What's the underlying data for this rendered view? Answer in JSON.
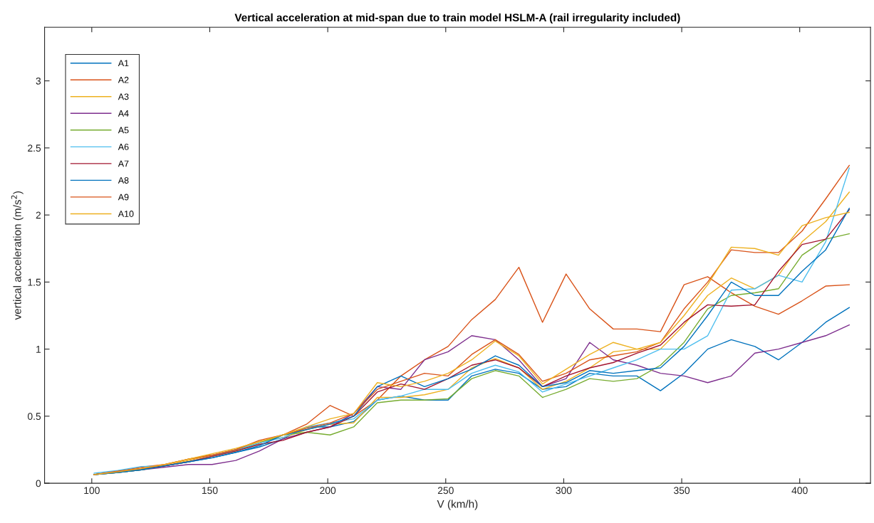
{
  "chart_data": {
    "type": "line",
    "title": "Vertical acceleration at mid-span due to train model HSLM-A (rail irregularity included)",
    "xlabel": "V (km/h)",
    "ylabel": "vertical acceleration (m/s$^{2}$)",
    "x": [
      101,
      111,
      121,
      131,
      141,
      151,
      161,
      171,
      181,
      191,
      201,
      211,
      221,
      231,
      241,
      251,
      261,
      271,
      281,
      291,
      301,
      311,
      321,
      331,
      341,
      351,
      361,
      371,
      381,
      391,
      401,
      411,
      421
    ],
    "xlim": [
      80,
      430
    ],
    "xticks": [
      100,
      150,
      200,
      250,
      300,
      350,
      400
    ],
    "ylim": [
      0,
      3.4
    ],
    "yticks": [
      0,
      0.5,
      1,
      1.5,
      2,
      2.5,
      3
    ],
    "grid": false,
    "legend": "top left",
    "line_style": "solid",
    "marker": "none",
    "series": [
      {
        "name": "A1",
        "color": "#0072bd",
        "values": [
          0.065,
          0.08,
          0.1,
          0.13,
          0.16,
          0.19,
          0.23,
          0.27,
          0.33,
          0.42,
          0.42,
          0.46,
          0.62,
          0.65,
          0.62,
          0.62,
          0.8,
          0.85,
          0.82,
          0.7,
          0.72,
          0.82,
          0.8,
          0.8,
          0.69,
          0.82,
          1.0,
          1.07,
          1.02,
          0.92,
          1.05,
          1.2,
          1.31
        ]
      },
      {
        "name": "A2",
        "color": "#d95319",
        "values": [
          0.065,
          0.09,
          0.12,
          0.14,
          0.18,
          0.21,
          0.25,
          0.3,
          0.36,
          0.44,
          0.58,
          0.5,
          0.62,
          0.8,
          0.92,
          1.02,
          1.22,
          1.37,
          1.61,
          1.2,
          1.56,
          1.3,
          1.15,
          1.15,
          1.13,
          1.48,
          1.54,
          1.42,
          1.32,
          1.26,
          1.36,
          1.47,
          1.48
        ]
      },
      {
        "name": "A3",
        "color": "#edb120",
        "values": [
          0.065,
          0.085,
          0.11,
          0.13,
          0.17,
          0.21,
          0.25,
          0.31,
          0.34,
          0.4,
          0.44,
          0.45,
          0.64,
          0.64,
          0.66,
          0.7,
          0.86,
          0.93,
          0.86,
          0.7,
          0.76,
          0.86,
          0.98,
          1.0,
          1.0,
          1.18,
          1.4,
          1.53,
          1.45,
          1.55,
          1.8,
          1.95,
          2.17
        ]
      },
      {
        "name": "A4",
        "color": "#7e2f8e",
        "values": [
          0.065,
          0.08,
          0.1,
          0.12,
          0.14,
          0.14,
          0.17,
          0.24,
          0.33,
          0.38,
          0.42,
          0.52,
          0.72,
          0.7,
          0.92,
          0.98,
          1.1,
          1.07,
          0.92,
          0.72,
          0.78,
          1.05,
          0.92,
          0.88,
          0.82,
          0.8,
          0.75,
          0.8,
          0.97,
          1.0,
          1.05,
          1.1,
          1.18
        ]
      },
      {
        "name": "A5",
        "color": "#77ac30",
        "values": [
          0.065,
          0.08,
          0.1,
          0.13,
          0.16,
          0.2,
          0.24,
          0.3,
          0.36,
          0.38,
          0.36,
          0.42,
          0.6,
          0.62,
          0.62,
          0.63,
          0.78,
          0.84,
          0.8,
          0.64,
          0.7,
          0.78,
          0.76,
          0.78,
          0.88,
          1.05,
          1.3,
          1.4,
          1.42,
          1.45,
          1.7,
          1.82,
          1.86
        ]
      },
      {
        "name": "A6",
        "color": "#4dbeee",
        "values": [
          0.075,
          0.095,
          0.125,
          0.13,
          0.16,
          0.2,
          0.25,
          0.3,
          0.34,
          0.42,
          0.45,
          0.48,
          0.62,
          0.65,
          0.7,
          0.7,
          0.82,
          0.88,
          0.83,
          0.68,
          0.74,
          0.8,
          0.86,
          0.92,
          1.0,
          1.0,
          1.1,
          1.44,
          1.45,
          1.55,
          1.5,
          1.8,
          2.35
        ]
      },
      {
        "name": "A7",
        "color": "#a2142f",
        "values": [
          0.065,
          0.085,
          0.11,
          0.13,
          0.16,
          0.2,
          0.24,
          0.29,
          0.32,
          0.38,
          0.42,
          0.5,
          0.68,
          0.74,
          0.7,
          0.78,
          0.88,
          0.92,
          0.86,
          0.72,
          0.8,
          0.86,
          0.9,
          0.97,
          1.03,
          1.2,
          1.33,
          1.32,
          1.33,
          1.58,
          1.78,
          1.82,
          2.04
        ]
      },
      {
        "name": "A8",
        "color": "#0072bd",
        "values": [
          0.065,
          0.08,
          0.1,
          0.13,
          0.16,
          0.19,
          0.23,
          0.28,
          0.36,
          0.4,
          0.44,
          0.5,
          0.72,
          0.8,
          0.72,
          0.78,
          0.85,
          0.95,
          0.88,
          0.72,
          0.75,
          0.84,
          0.82,
          0.84,
          0.86,
          1.02,
          1.25,
          1.5,
          1.4,
          1.4,
          1.58,
          1.74,
          2.05
        ]
      },
      {
        "name": "A9",
        "color": "#d95319",
        "values": [
          0.065,
          0.09,
          0.11,
          0.14,
          0.18,
          0.21,
          0.25,
          0.32,
          0.36,
          0.41,
          0.45,
          0.52,
          0.7,
          0.76,
          0.82,
          0.8,
          0.96,
          1.07,
          0.96,
          0.76,
          0.82,
          0.92,
          0.95,
          0.98,
          1.05,
          1.3,
          1.5,
          1.74,
          1.72,
          1.72,
          1.88,
          2.12,
          2.37
        ]
      },
      {
        "name": "A10",
        "color": "#edb120",
        "values": [
          0.065,
          0.085,
          0.11,
          0.14,
          0.18,
          0.22,
          0.26,
          0.31,
          0.36,
          0.42,
          0.48,
          0.52,
          0.75,
          0.72,
          0.76,
          0.82,
          0.92,
          1.06,
          0.95,
          0.74,
          0.85,
          0.96,
          1.05,
          1.0,
          1.05,
          1.25,
          1.48,
          1.76,
          1.75,
          1.7,
          1.92,
          1.98,
          2.02
        ]
      }
    ]
  }
}
